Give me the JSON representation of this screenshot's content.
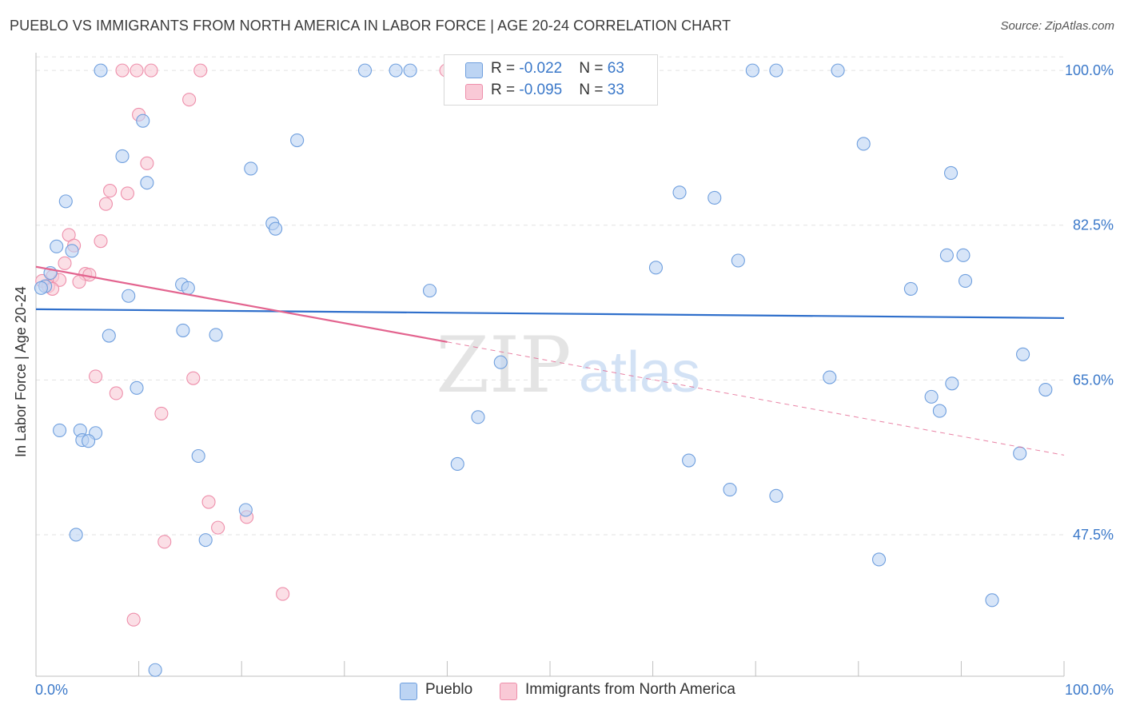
{
  "header": {
    "title": "PUEBLO VS IMMIGRANTS FROM NORTH AMERICA IN LABOR FORCE | AGE 20-24 CORRELATION CHART",
    "source": "Source: ZipAtlas.com"
  },
  "watermark": {
    "zip": "ZIP",
    "atlas": "atlas"
  },
  "legend": {
    "pueblo": {
      "r_label": "R = ",
      "r_value": "-0.022",
      "n_label": "N = ",
      "n_value": "63"
    },
    "immigrants": {
      "r_label": "R = ",
      "r_value": "-0.095",
      "n_label": "N = ",
      "n_value": "33"
    }
  },
  "bottom_legend": {
    "pueblo": "Pueblo",
    "immigrants": "Immigrants from North America"
  },
  "colors": {
    "pueblo_fill": "#bcd4f3",
    "pueblo_stroke": "#6f9fde",
    "pueblo_line": "#2f6fcb",
    "imm_fill": "#f9c9d6",
    "imm_stroke": "#ee8fab",
    "imm_line": "#e3648f",
    "tick_text": "#3a78c9",
    "grid": "#e2e2e2"
  },
  "chart_data": {
    "type": "scatter",
    "title": "PUEBLO VS IMMIGRANTS FROM NORTH AMERICA IN LABOR FORCE | AGE 20-24 CORRELATION CHART",
    "xlabel": "",
    "ylabel": "In Labor Force | Age 20-24",
    "xlim": [
      0,
      100
    ],
    "ylim": [
      31.5,
      102
    ],
    "x_tick_labels": [
      "0.0%",
      "100.0%"
    ],
    "y_ticks": [
      47.5,
      65.0,
      82.5,
      100.0
    ],
    "y_tick_labels": [
      "47.5%",
      "65.0%",
      "82.5%",
      "100.0%"
    ],
    "grid": true,
    "legend_position": "top-center",
    "series": [
      {
        "name": "Pueblo",
        "r": -0.022,
        "n": 63,
        "trend": {
          "x": [
            0,
            100
          ],
          "y": [
            73.0,
            72.0
          ]
        },
        "points": [
          [
            6.3,
            100
          ],
          [
            32.0,
            100
          ],
          [
            35.0,
            100
          ],
          [
            36.4,
            100
          ],
          [
            69.7,
            100
          ],
          [
            72.0,
            100
          ],
          [
            78.0,
            100
          ],
          [
            10.4,
            94.3
          ],
          [
            25.4,
            92.1
          ],
          [
            80.5,
            91.7
          ],
          [
            8.4,
            90.3
          ],
          [
            20.9,
            88.9
          ],
          [
            89.0,
            88.4
          ],
          [
            10.8,
            87.3
          ],
          [
            62.6,
            86.2
          ],
          [
            66.0,
            85.6
          ],
          [
            2.9,
            85.2
          ],
          [
            23.0,
            82.7
          ],
          [
            23.3,
            82.1
          ],
          [
            2.0,
            80.1
          ],
          [
            3.5,
            79.6
          ],
          [
            88.6,
            79.1
          ],
          [
            90.2,
            79.1
          ],
          [
            68.3,
            78.5
          ],
          [
            60.3,
            77.7
          ],
          [
            1.4,
            77.1
          ],
          [
            90.4,
            76.2
          ],
          [
            0.9,
            75.6
          ],
          [
            0.5,
            75.4
          ],
          [
            14.2,
            75.8
          ],
          [
            14.8,
            75.4
          ],
          [
            38.3,
            75.1
          ],
          [
            85.1,
            75.3
          ],
          [
            9.0,
            74.5
          ],
          [
            14.3,
            70.6
          ],
          [
            7.1,
            70.0
          ],
          [
            17.5,
            70.1
          ],
          [
            45.2,
            67.0
          ],
          [
            96.0,
            67.9
          ],
          [
            77.2,
            65.3
          ],
          [
            89.1,
            64.6
          ],
          [
            9.8,
            64.1
          ],
          [
            98.2,
            63.9
          ],
          [
            87.1,
            63.1
          ],
          [
            87.9,
            61.5
          ],
          [
            43.0,
            60.8
          ],
          [
            2.3,
            59.3
          ],
          [
            4.3,
            59.3
          ],
          [
            5.8,
            59.0
          ],
          [
            4.5,
            58.2
          ],
          [
            5.1,
            58.1
          ],
          [
            15.8,
            56.4
          ],
          [
            95.7,
            56.7
          ],
          [
            63.5,
            55.9
          ],
          [
            41.0,
            55.5
          ],
          [
            67.5,
            52.6
          ],
          [
            72.0,
            51.9
          ],
          [
            20.4,
            50.3
          ],
          [
            3.9,
            47.5
          ],
          [
            16.5,
            46.9
          ],
          [
            82.0,
            44.7
          ],
          [
            93.0,
            40.1
          ],
          [
            11.6,
            32.2
          ]
        ]
      },
      {
        "name": "Immigrants from North America",
        "r": -0.095,
        "n": 33,
        "trend": {
          "x": [
            0,
            40
          ],
          "y": [
            77.8,
            69.3
          ]
        },
        "trend_dashed": {
          "x": [
            40,
            100
          ],
          "y": [
            69.3,
            56.5
          ]
        },
        "points": [
          [
            8.4,
            100
          ],
          [
            9.8,
            100
          ],
          [
            11.2,
            100
          ],
          [
            16.0,
            100
          ],
          [
            39.9,
            100
          ],
          [
            14.9,
            96.7
          ],
          [
            10.0,
            95.0
          ],
          [
            10.8,
            89.5
          ],
          [
            7.2,
            86.4
          ],
          [
            8.9,
            86.1
          ],
          [
            6.8,
            84.9
          ],
          [
            3.2,
            81.4
          ],
          [
            6.3,
            80.7
          ],
          [
            3.7,
            80.2
          ],
          [
            2.8,
            78.2
          ],
          [
            4.8,
            77.0
          ],
          [
            5.2,
            76.9
          ],
          [
            1.6,
            76.7
          ],
          [
            2.3,
            76.3
          ],
          [
            4.2,
            76.1
          ],
          [
            0.6,
            76.2
          ],
          [
            1.2,
            75.6
          ],
          [
            1.6,
            75.3
          ],
          [
            5.8,
            65.4
          ],
          [
            15.3,
            65.2
          ],
          [
            7.8,
            63.5
          ],
          [
            12.2,
            61.2
          ],
          [
            16.8,
            51.2
          ],
          [
            17.7,
            48.3
          ],
          [
            20.5,
            49.5
          ],
          [
            12.5,
            46.7
          ],
          [
            24.0,
            40.8
          ],
          [
            9.5,
            37.9
          ]
        ]
      }
    ]
  }
}
